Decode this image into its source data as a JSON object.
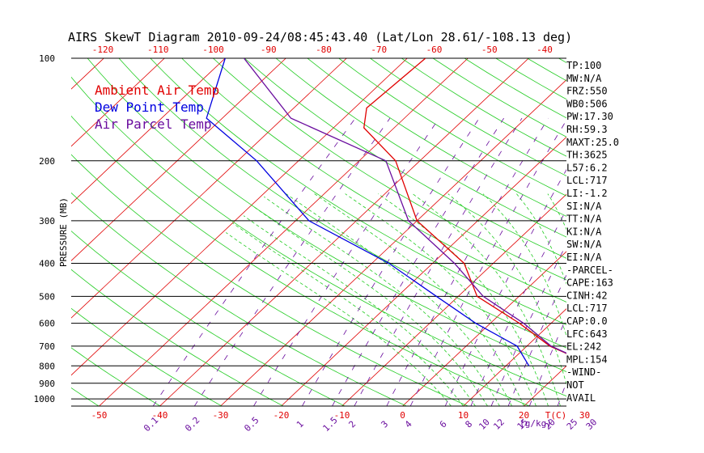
{
  "chart_data": {
    "type": "line",
    "title": "AIRS SkewT Diagram 2010-09-24/08:45:43.40 (Lat/Lon 28.61/-108.13 deg)",
    "ylabel": "PRESSURE (MB)",
    "x_top_ticks": [
      "-120",
      "-110",
      "-100",
      "-90",
      "-80",
      "-70",
      "-60",
      "-50",
      "-40"
    ],
    "x_bottom_ticks": [
      "-50",
      "-40",
      "-30",
      "-20",
      "-10",
      "0",
      "10",
      "20",
      "30"
    ],
    "x_bottom_unit": "T(C)",
    "mixing_ratio_labels": [
      "0.1",
      "0.2",
      "0.5",
      "1",
      "1.5",
      "2",
      "3",
      "4",
      "6",
      "8",
      "10",
      "12",
      "15",
      "20",
      "25",
      "30"
    ],
    "mixing_ratio_unit": "(g/kg)",
    "y_ticks": [
      100,
      200,
      300,
      400,
      500,
      600,
      700,
      800,
      900,
      1000
    ],
    "ylim": [
      100,
      1050
    ],
    "xlim": [
      -53,
      27
    ],
    "grid": true,
    "legend_placement": "top-left",
    "series": [
      {
        "name": "Ambient Air Temp",
        "color": "#e00000",
        "x": [
          24.6,
          13.8,
          4.8,
          -6.9,
          -14.8,
          -30.0,
          -44.0,
          -55.0,
          -58.0,
          -57.0
        ],
        "y": [
          800,
          700,
          600,
          500,
          400,
          300,
          200,
          160,
          140,
          100
        ]
      },
      {
        "name": "Dew Point Temp",
        "color": "#0000e0",
        "x": [
          13.8,
          8.4,
          -2.4,
          -13.6,
          -27.2,
          -47.8,
          -66.9,
          -82.6,
          -90.0
        ],
        "y": [
          800,
          700,
          600,
          500,
          400,
          300,
          200,
          150,
          100
        ]
      },
      {
        "name": "Air Parcel Temp",
        "color": "#6a0d9e",
        "x": [
          24.6,
          14.0,
          5.5,
          -5.9,
          -16.4,
          -31.4,
          -45.6,
          -68.7,
          -86.9
        ],
        "y": [
          800,
          700,
          600,
          500,
          400,
          300,
          200,
          150,
          100
        ]
      }
    ],
    "stats": [
      "TP:100",
      "MW:N/A",
      "FRZ:550",
      "WB0:506",
      "PW:17.30",
      "RH:59.3",
      "MAXT:25.0",
      "TH:3625",
      "L57:6.2",
      "LCL:717",
      "LI:-1.2",
      "SI:N/A",
      "TT:N/A",
      "KI:N/A",
      "SW:N/A",
      "EI:N/A",
      "-PARCEL-",
      "CAPE:163",
      "CINH:42",
      "LCL:717",
      "CAP:0.0",
      "LFC:643",
      "EL:242",
      "MPL:154",
      "-WIND-",
      "NOT",
      "AVAIL"
    ]
  }
}
